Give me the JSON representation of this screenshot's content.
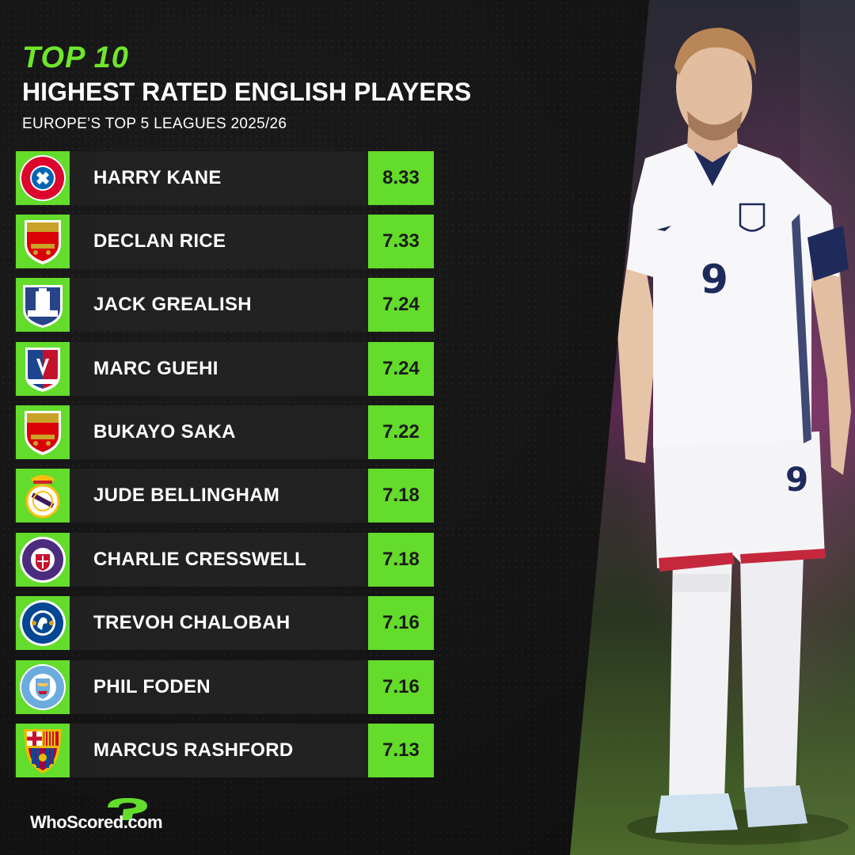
{
  "header": {
    "top_label": "TOP 10",
    "title": "HIGHEST RATED ENGLISH PLAYERS",
    "subtitle": "EUROPE’S TOP 5 LEAGUES 2025/26"
  },
  "rows": [
    {
      "player": "HARRY KANE",
      "rating": "8.33",
      "club_icon": "bayern-munich-badge-icon"
    },
    {
      "player": "DECLAN RICE",
      "rating": "7.33",
      "club_icon": "arsenal-badge-icon"
    },
    {
      "player": "JACK GREALISH",
      "rating": "7.24",
      "club_icon": "everton-badge-icon"
    },
    {
      "player": "MARC GUEHI",
      "rating": "7.24",
      "club_icon": "crystal-palace-badge-icon"
    },
    {
      "player": "BUKAYO SAKA",
      "rating": "7.22",
      "club_icon": "arsenal-badge-icon"
    },
    {
      "player": "JUDE BELLINGHAM",
      "rating": "7.18",
      "club_icon": "real-madrid-badge-icon"
    },
    {
      "player": "CHARLIE CRESSWELL",
      "rating": "7.18",
      "club_icon": "toulouse-badge-icon"
    },
    {
      "player": "TREVOH CHALOBAH",
      "rating": "7.16",
      "club_icon": "chelsea-badge-icon"
    },
    {
      "player": "PHIL FODEN",
      "rating": "7.16",
      "club_icon": "manchester-city-badge-icon"
    },
    {
      "player": "MARCUS RASHFORD",
      "rating": "7.13",
      "club_icon": "barcelona-badge-icon"
    }
  ],
  "logo": {
    "text": "WhoScored.com"
  },
  "photo": {
    "shirt_number": "9"
  },
  "colors": {
    "accent": "#63dc2b",
    "background": "#1b1b1b",
    "row": "#222222"
  }
}
